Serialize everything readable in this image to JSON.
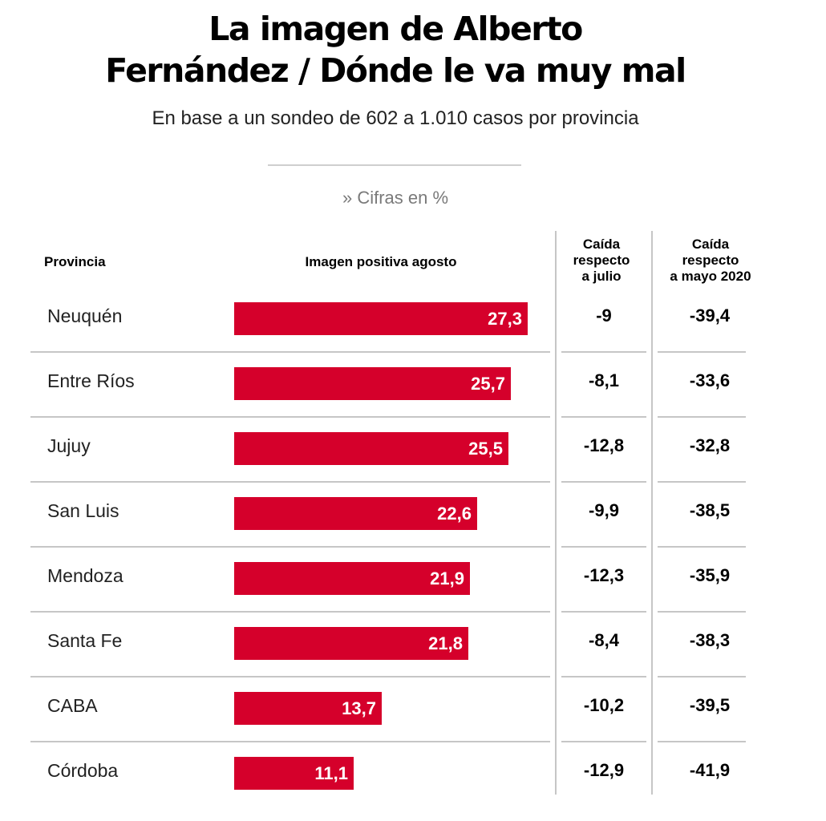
{
  "header": {
    "title_line1": "La imagen de Alberto",
    "title_line2": "Fernández / Dónde le va muy mal",
    "subtitle": "En base a un sondeo de 602 a 1.010 casos por provincia",
    "units": "» Cifras en %"
  },
  "columns": {
    "province": "Provincia",
    "image": "Imagen positiva agosto",
    "julio": "Caída respecto a julio",
    "mayo": "Caída respecto a mayo 2020"
  },
  "colors": {
    "bar": "#d5002b"
  },
  "chart_data": {
    "type": "bar",
    "title": "La imagen de Alberto Fernández / Dónde le va muy mal",
    "subtitle": "En base a un sondeo de 602 a 1.010 casos por provincia",
    "xlim": [
      0,
      27.3
    ],
    "categories": [
      "Neuquén",
      "Entre Ríos",
      "Jujuy",
      "San Luis",
      "Mendoza",
      "Santa Fe",
      "CABA",
      "Córdoba"
    ],
    "series": [
      {
        "name": "Imagen positiva agosto",
        "values": [
          27.3,
          25.7,
          25.5,
          22.6,
          21.9,
          21.8,
          13.7,
          11.1
        ],
        "labels": [
          "27,3",
          "25,7",
          "25,5",
          "22,6",
          "21,9",
          "21,8",
          "13,7",
          "11,1"
        ]
      },
      {
        "name": "Caída respecto a julio",
        "values": [
          -9,
          -8.1,
          -12.8,
          -9.9,
          -12.3,
          -8.4,
          -10.2,
          -12.9
        ],
        "labels": [
          "-9",
          "-8,1",
          "-12,8",
          "-9,9",
          "-12,3",
          "-8,4",
          "-10,2",
          "-12,9"
        ]
      },
      {
        "name": "Caída respecto a mayo 2020",
        "values": [
          -39.4,
          -33.6,
          -32.8,
          -38.5,
          -35.9,
          -38.3,
          -39.5,
          -41.9
        ],
        "labels": [
          "-39,4",
          "-33,6",
          "-32,8",
          "-38,5",
          "-35,9",
          "-38,3",
          "-39,5",
          "-41,9"
        ]
      }
    ]
  }
}
